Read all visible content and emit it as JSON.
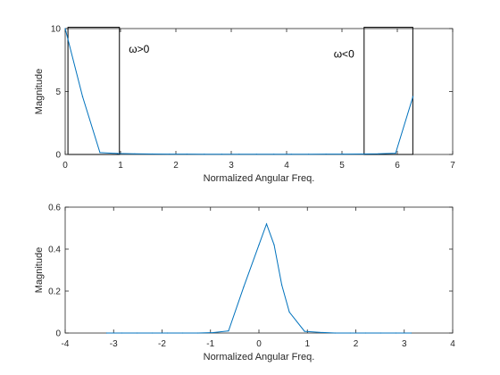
{
  "chart_data": [
    {
      "type": "line",
      "xlabel": "Normalized Angular Freq.",
      "ylabel": "Magnitude",
      "xlim": [
        0,
        7
      ],
      "ylim": [
        0,
        10
      ],
      "xticks": [
        "0",
        "1",
        "2",
        "3",
        "4",
        "5",
        "6",
        "7"
      ],
      "yticks": [
        "0",
        "5",
        "10"
      ],
      "grid": false,
      "series": [
        {
          "color": "#0072BD",
          "x": [
            0,
            0.314,
            0.628,
            0.942,
            1.257,
            1.571,
            1.885,
            2.199,
            2.513,
            2.827,
            3.142,
            3.456,
            3.77,
            4.084,
            4.398,
            4.712,
            5.027,
            5.341,
            5.655,
            5.969,
            6.283
          ],
          "y": [
            10,
            4.6,
            0.15,
            0.08,
            0.05,
            0.04,
            0.03,
            0.03,
            0.02,
            0.02,
            0.02,
            0.02,
            0.02,
            0.02,
            0.02,
            0.03,
            0.03,
            0.04,
            0.05,
            0.1,
            4.6
          ]
        }
      ],
      "annotations": [
        {
          "text": "ω>0",
          "x": 1.15,
          "y": 8.1
        },
        {
          "text": "ω<0",
          "x": 4.85,
          "y": 7.7
        }
      ],
      "boxes": [
        {
          "x0": 0.05,
          "x1": 0.98,
          "y0": 0,
          "y1": 10.1
        },
        {
          "x0": 5.4,
          "x1": 6.28,
          "y0": 0,
          "y1": 10.1
        }
      ]
    },
    {
      "type": "line",
      "xlabel": "Normalized Angular Freq.",
      "ylabel": "Magnitude",
      "xlim": [
        -4,
        4
      ],
      "ylim": [
        0,
        0.6
      ],
      "xticks": [
        "-4",
        "-3",
        "-2",
        "-1",
        "0",
        "1",
        "2",
        "3",
        "4"
      ],
      "yticks": [
        "0",
        "0.2",
        "0.4",
        "0.6"
      ],
      "grid": false,
      "series": [
        {
          "color": "#0072BD",
          "x": [
            -3.142,
            -2.827,
            -2.513,
            -2.199,
            -1.885,
            -1.571,
            -1.257,
            -0.942,
            -0.628,
            -0.314,
            0,
            0.157,
            0.314,
            0.471,
            0.628,
            0.942,
            1.257,
            1.571,
            1.885,
            2.199,
            2.513,
            2.827,
            3.142
          ],
          "y": [
            0,
            0,
            0,
            0,
            0,
            0,
            0,
            0.002,
            0.01,
            0.22,
            0.42,
            0.52,
            0.42,
            0.23,
            0.1,
            0.008,
            0.003,
            0,
            0,
            0,
            0,
            0,
            0
          ]
        }
      ]
    }
  ]
}
